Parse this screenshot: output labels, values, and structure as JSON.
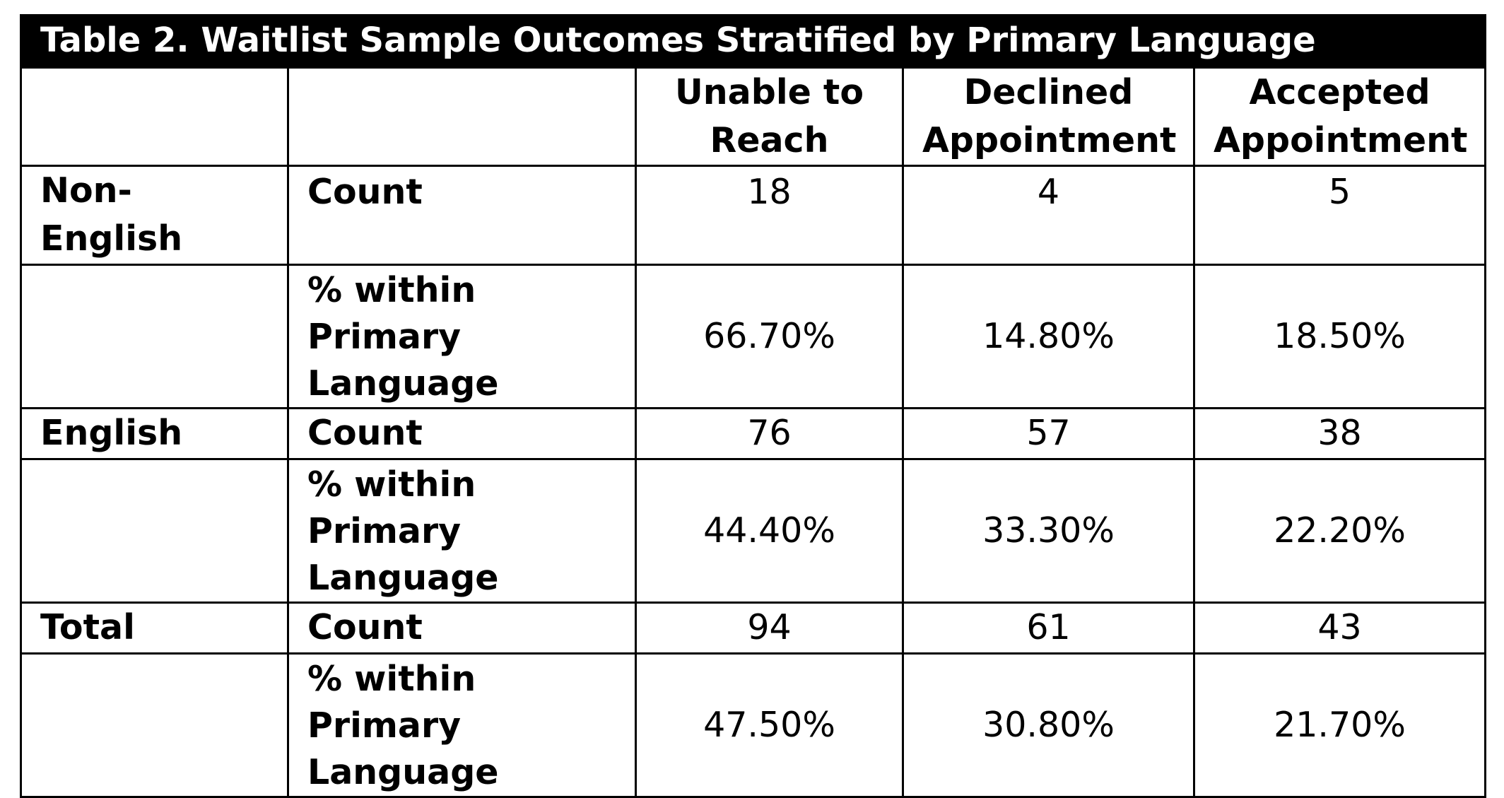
{
  "title": "Table 2. Waitlist Sample Outcomes Stratified by Primary Language",
  "columns": [
    "",
    "",
    "Unable to Reach",
    "Declined Appointment",
    "Accepted Appointment"
  ],
  "rows": [
    {
      "group": "Non-English",
      "measure": "Count",
      "values": [
        "18",
        "4",
        "5"
      ]
    },
    {
      "group": "",
      "measure": "% within Primary Language",
      "values": [
        "66.70%",
        "14.80%",
        "18.50%"
      ]
    },
    {
      "group": "English",
      "measure": "Count",
      "values": [
        "76",
        "57",
        "38"
      ]
    },
    {
      "group": "",
      "measure": "% within Primary Language",
      "values": [
        "44.40%",
        "33.30%",
        "22.20%"
      ]
    },
    {
      "group": "Total",
      "measure": "Count",
      "values": [
        "94",
        "61",
        "43"
      ]
    },
    {
      "group": "",
      "measure": "% within Primary Language",
      "values": [
        "47.50%",
        "30.80%",
        "21.70%"
      ]
    }
  ]
}
